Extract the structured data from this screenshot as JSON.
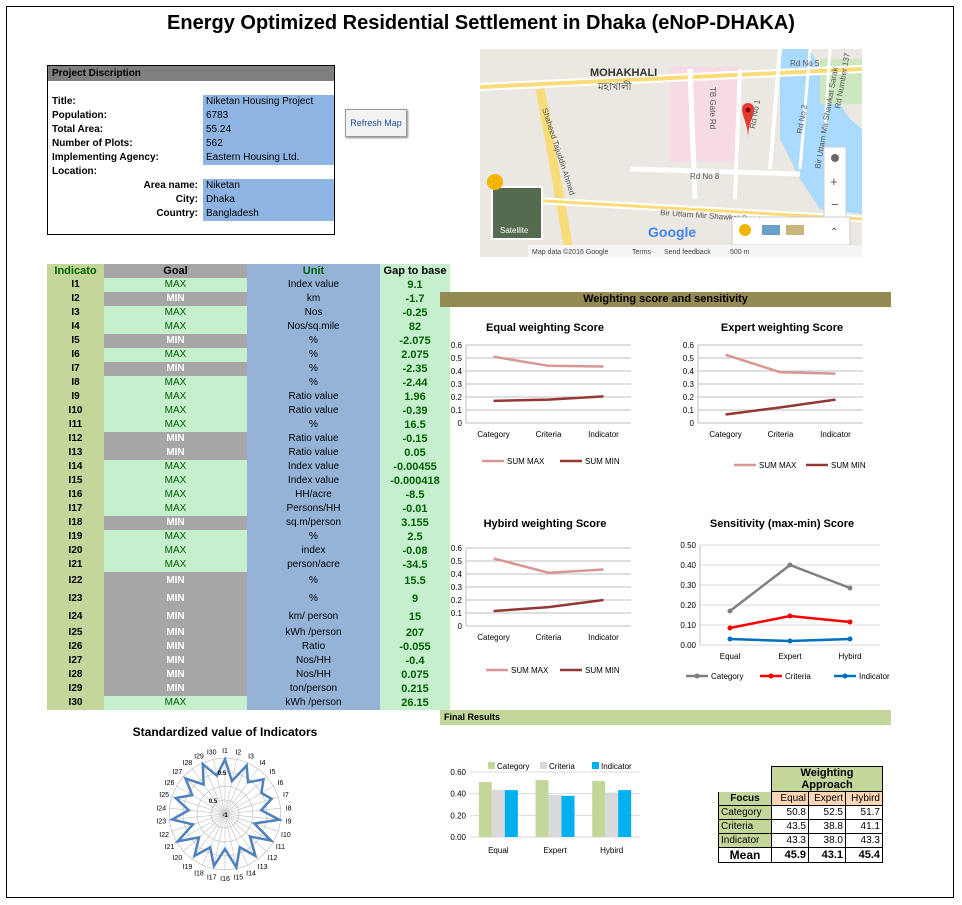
{
  "title": "Energy Optimized Residential Settlement in Dhaka (eNoP-DHAKA)",
  "project": {
    "header": "Project Discription",
    "title_label": "Title:",
    "title": "Niketan Housing Project",
    "population_label": "Population:",
    "population": "6783",
    "area_label": "Total Area:",
    "area": "55.24",
    "plots_label": "Number of Plots:",
    "plots": "562",
    "agency_label": "Implementing Agency:",
    "agency": "Eastern Housing Ltd.",
    "location_label": "Location:",
    "areaname_label": "Area name:",
    "areaname": "Niketan",
    "city_label": "City:",
    "city": "Dhaka",
    "country_label": "Country:",
    "country": "Bangladesh"
  },
  "refresh_button": "Refresh Map",
  "map": {
    "area_en": "MOHAKHALI",
    "area_bn": "মহাখালী",
    "roads": [
      "TB Gate Rd",
      "Rd No 1",
      "Rd No 2",
      "Rd No 3",
      "Rd No 5",
      "Rd No 8",
      "Rd Number 137",
      "Bir Uttam Mir Shawkat Sarak",
      "Shaheed Tajuddin Ahmed",
      "Bir Uttam Mir Shawkat Sarak",
      "Rd No 1"
    ],
    "satellite": "Satellite",
    "brand": "Google",
    "footer_data": "Map data ©2016 Google",
    "footer_terms": "Terms",
    "footer_feedback": "Send feedback",
    "footer_scale": "500 m",
    "zoom_in": "+",
    "zoom_out": "−",
    "expand": "⌃"
  },
  "indicators": {
    "headers": [
      "Indicato",
      "Goal",
      "Unit",
      "Gap to base"
    ],
    "rows": [
      {
        "id": "I1",
        "goal": "MAX",
        "unit": "Index value",
        "gap": "9.1"
      },
      {
        "id": "I2",
        "goal": "MIN",
        "unit": "km",
        "gap": "-1.7"
      },
      {
        "id": "I3",
        "goal": "MAX",
        "unit": "Nos",
        "gap": "-0.25"
      },
      {
        "id": "I4",
        "goal": "MAX",
        "unit": "Nos/sq.mile",
        "gap": "82"
      },
      {
        "id": "I5",
        "goal": "MIN",
        "unit": "%",
        "gap": "-2.075"
      },
      {
        "id": "I6",
        "goal": "MAX",
        "unit": "%",
        "gap": "2.075"
      },
      {
        "id": "I7",
        "goal": "MIN",
        "unit": "%",
        "gap": "-2.35"
      },
      {
        "id": "I8",
        "goal": "MAX",
        "unit": "%",
        "gap": "-2.44"
      },
      {
        "id": "I9",
        "goal": "MAX",
        "unit": "Ratio value",
        "gap": "1.96"
      },
      {
        "id": "I10",
        "goal": "MAX",
        "unit": "Ratio value",
        "gap": "-0.39"
      },
      {
        "id": "I11",
        "goal": "MAX",
        "unit": "%",
        "gap": "16.5"
      },
      {
        "id": "I12",
        "goal": "MIN",
        "unit": "Ratio value",
        "gap": "-0.15"
      },
      {
        "id": "I13",
        "goal": "MIN",
        "unit": "Ratio value",
        "gap": "0.05"
      },
      {
        "id": "I14",
        "goal": "MAX",
        "unit": "Index value",
        "gap": "-0.00455"
      },
      {
        "id": "I15",
        "goal": "MAX",
        "unit": "Index value",
        "gap": "-0.000418"
      },
      {
        "id": "I16",
        "goal": "MAX",
        "unit": "HH/acre",
        "gap": "-8.5"
      },
      {
        "id": "I17",
        "goal": "MAX",
        "unit": "Persons/HH",
        "gap": "-0.01"
      },
      {
        "id": "I18",
        "goal": "MIN",
        "unit": "sq.m/person",
        "gap": "3.155"
      },
      {
        "id": "I19",
        "goal": "MAX",
        "unit": "%",
        "gap": "2.5"
      },
      {
        "id": "I20",
        "goal": "MAX",
        "unit": "index",
        "gap": "-0.08"
      },
      {
        "id": "I21",
        "goal": "MAX",
        "unit": "person/acre",
        "gap": "-34.5"
      },
      {
        "id": "I22",
        "goal": "MIN",
        "unit": "%",
        "gap": "15.5"
      },
      {
        "id": "I23",
        "goal": "MIN",
        "unit": "%",
        "gap": "9"
      },
      {
        "id": "I24",
        "goal": "MIN",
        "unit": "km/ person",
        "gap": "15"
      },
      {
        "id": "I25",
        "goal": "MIN",
        "unit": "kWh /person",
        "gap": "207"
      },
      {
        "id": "I26",
        "goal": "MIN",
        "unit": "Ratio",
        "gap": "-0.055"
      },
      {
        "id": "I27",
        "goal": "MIN",
        "unit": "Nos/HH",
        "gap": "-0.4"
      },
      {
        "id": "I28",
        "goal": "MIN",
        "unit": "Nos/HH",
        "gap": "0.075"
      },
      {
        "id": "I29",
        "goal": "MIN",
        "unit": "ton/person",
        "gap": "0.215"
      },
      {
        "id": "I30",
        "goal": "MAX",
        "unit": "kWh /person",
        "gap": "26.15"
      }
    ]
  },
  "radar_title": "Standardized value of Indicators",
  "weighting_header": "Weighting score and sensitivity",
  "final_header": "Final Results",
  "chart_data": [
    {
      "type": "line",
      "title": "Equal weighting Score",
      "categories": [
        "Category",
        "Criteria",
        "Indicator"
      ],
      "ylim": [
        0,
        0.6
      ],
      "yticks": [
        "0",
        "0.1",
        "0.2",
        "0.3",
        "0.4",
        "0.5",
        "0.6"
      ],
      "series": [
        {
          "name": "SUM MAX",
          "values": [
            0.51,
            0.44,
            0.435
          ],
          "color": "#d99694"
        },
        {
          "name": "SUM MIN",
          "values": [
            0.17,
            0.18,
            0.205
          ],
          "color": "#953735"
        }
      ]
    },
    {
      "type": "line",
      "title": "Expert weighting Score",
      "categories": [
        "Category",
        "Criteria",
        "Indicator"
      ],
      "ylim": [
        0,
        0.6
      ],
      "yticks": [
        "0",
        "0.1",
        "0.2",
        "0.3",
        "0.4",
        "0.5",
        "0.6"
      ],
      "series": [
        {
          "name": "SUM MAX",
          "values": [
            0.525,
            0.39,
            0.38
          ],
          "color": "#d99694"
        },
        {
          "name": "SUM MIN",
          "values": [
            0.065,
            0.12,
            0.18
          ],
          "color": "#953735"
        }
      ]
    },
    {
      "type": "line",
      "title": "Hybird weighting Score",
      "categories": [
        "Category",
        "Criteria",
        "Indicator"
      ],
      "ylim": [
        0,
        0.6
      ],
      "yticks": [
        "0",
        "0.1",
        "0.2",
        "0.3",
        "0.4",
        "0.5",
        "0.6"
      ],
      "series": [
        {
          "name": "SUM MAX",
          "values": [
            0.52,
            0.41,
            0.435
          ],
          "color": "#d99694"
        },
        {
          "name": "SUM MIN",
          "values": [
            0.115,
            0.145,
            0.2
          ],
          "color": "#953735"
        }
      ]
    },
    {
      "type": "line",
      "title": "Sensitivity (max-min) Score",
      "categories": [
        "Equal",
        "Expert",
        "Hybird"
      ],
      "ylim": [
        0,
        0.5
      ],
      "yticks": [
        "0.00",
        "0.10",
        "0.20",
        "0.30",
        "0.40",
        "0.50"
      ],
      "series": [
        {
          "name": "Category",
          "values": [
            0.17,
            0.4,
            0.285
          ],
          "color": "#7f7f7f"
        },
        {
          "name": "Criteria",
          "values": [
            0.085,
            0.145,
            0.115
          ],
          "color": "#ff0000"
        },
        {
          "name": "Indicator",
          "values": [
            0.03,
            0.02,
            0.03
          ],
          "color": "#0070c0"
        }
      ]
    },
    {
      "type": "bar",
      "title": "",
      "categories": [
        "Equal",
        "Expert",
        "Hybird"
      ],
      "ylim": [
        0,
        0.6
      ],
      "yticks": [
        "0.00",
        "0.20",
        "0.40",
        "0.60"
      ],
      "series": [
        {
          "name": "Category",
          "values": [
            0.508,
            0.525,
            0.517
          ],
          "color": "#c4d79b"
        },
        {
          "name": "Criteria",
          "values": [
            0.435,
            0.388,
            0.411
          ],
          "color": "#d9d9d9"
        },
        {
          "name": "Indicator",
          "values": [
            0.433,
            0.38,
            0.433
          ],
          "color": "#00b0f0"
        }
      ]
    },
    {
      "type": "radar",
      "title": "Standardized value of Indicators",
      "labels": [
        "I1",
        "I2",
        "I3",
        "I4",
        "I5",
        "I6",
        "I7",
        "I8",
        "I9",
        "I10",
        "I11",
        "I12",
        "I13",
        "I14",
        "I15",
        "I16",
        "I17",
        "I18",
        "I19",
        "I20",
        "I21",
        "I22",
        "I23",
        "I24",
        "I25",
        "I26",
        "I27",
        "I28",
        "I29",
        "I30"
      ],
      "rticks": [
        "-1",
        "0.5",
        "0.5"
      ],
      "rlim": [
        -1,
        1
      ],
      "values": [
        0.95,
        0.2,
        0.9,
        0.4,
        0.85,
        0.5,
        0.75,
        0.3,
        0.95,
        0.1,
        0.9,
        0.2,
        0.85,
        0.3,
        0.95,
        0.25,
        0.9,
        0.3,
        0.85,
        0.25,
        0.95,
        0.2,
        0.9,
        0.3,
        0.85,
        0.35,
        0.9,
        0.3,
        0.95,
        0.4
      ]
    }
  ],
  "final_table": {
    "header": "Weighting Approach",
    "focus_label": "Focus",
    "columns": [
      "Equal",
      "Expert",
      "Hybird"
    ],
    "rows": [
      {
        "label": "Category",
        "values": [
          "50.8",
          "52.5",
          "51.7"
        ]
      },
      {
        "label": "Criteria",
        "values": [
          "43.5",
          "38.8",
          "41.1"
        ]
      },
      {
        "label": "Indicator",
        "values": [
          "43.3",
          "38.0",
          "43.3"
        ]
      }
    ],
    "mean_label": "Mean",
    "mean": [
      "45.9",
      "43.1",
      "45.4"
    ]
  }
}
